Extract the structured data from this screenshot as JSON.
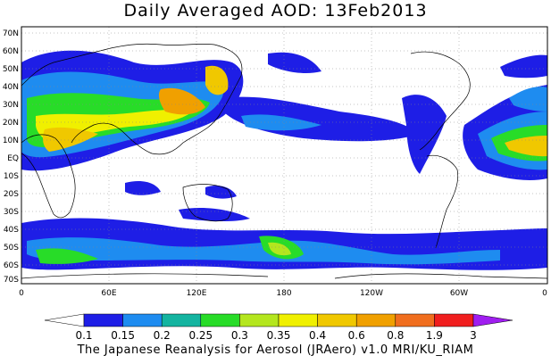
{
  "title": "Daily Averaged AOD: 13Feb2013",
  "footer": "The Japanese Reanalysis for Aerosol (JRAero) v1.0 MRI/KU_RIAM",
  "map": {
    "lat_ticks": [
      "70N",
      "60N",
      "50N",
      "40N",
      "30N",
      "20N",
      "10N",
      "EQ",
      "10S",
      "20S",
      "30S",
      "40S",
      "50S",
      "60S",
      "70S"
    ],
    "lon_ticks": [
      "0",
      "60E",
      "120E",
      "180",
      "120W",
      "60W",
      "0"
    ]
  },
  "colorbar": {
    "levels": [
      "0.1",
      "0.15",
      "0.2",
      "0.25",
      "0.3",
      "0.35",
      "0.4",
      "0.6",
      "0.8",
      "1.9",
      "3"
    ],
    "colors": [
      "#ffffff",
      "#1e1ee6",
      "#1e8cf0",
      "#14b4a0",
      "#28dc28",
      "#b4e61e",
      "#f0f000",
      "#f0c800",
      "#f0a000",
      "#f06e1e",
      "#f01e1e",
      "#a01ef0"
    ]
  }
}
